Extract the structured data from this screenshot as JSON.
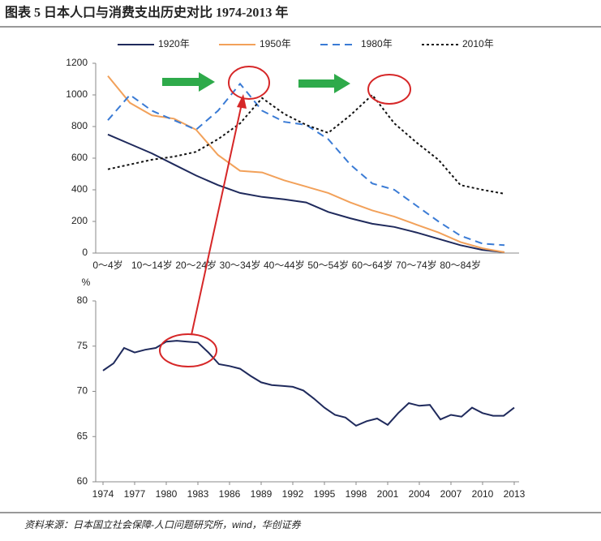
{
  "title": "图表 5   日本人口与消费支出历史对比 1974-2013 年",
  "source": "资料来源：日本国立社会保障-人口问题研究所，wind，华创证券",
  "chart_data": [
    {
      "type": "line",
      "categories": [
        "0～4岁",
        null,
        "10～14岁",
        null,
        "20～24岁",
        null,
        "30～34岁",
        null,
        "40～44岁",
        null,
        "50～54岁",
        null,
        "60～64岁",
        null,
        "70～74岁",
        null,
        "80～84岁",
        null,
        null
      ],
      "series": [
        {
          "name": "1920年",
          "color": "#1f2a5c",
          "dash": "none",
          "values": [
            750,
            690,
            630,
            560,
            490,
            430,
            380,
            355,
            340,
            320,
            260,
            220,
            185,
            165,
            130,
            90,
            50,
            20,
            5
          ]
        },
        {
          "name": "1950年",
          "color": "#f2a15a",
          "dash": "none",
          "values": [
            1120,
            950,
            870,
            850,
            780,
            620,
            520,
            510,
            460,
            420,
            380,
            320,
            270,
            230,
            180,
            130,
            70,
            30,
            5
          ]
        },
        {
          "name": "1980年",
          "color": "#3a7bd5",
          "dash": "9,6",
          "values": [
            840,
            1000,
            900,
            840,
            780,
            900,
            1070,
            900,
            830,
            810,
            720,
            560,
            440,
            400,
            300,
            200,
            110,
            60,
            50
          ]
        },
        {
          "name": "2010年",
          "color": "#111111",
          "dash": "3,3",
          "values": [
            530,
            560,
            590,
            610,
            640,
            720,
            820,
            980,
            880,
            810,
            760,
            870,
            1000,
            820,
            700,
            590,
            430,
            400,
            375
          ]
        }
      ],
      "ylim": [
        0,
        1200
      ],
      "yticks": [
        0,
        200,
        400,
        600,
        800,
        1000,
        1200
      ],
      "legend": "top"
    },
    {
      "type": "line",
      "ylabel": "%",
      "x": [
        1974,
        1975,
        1976,
        1977,
        1978,
        1979,
        1980,
        1981,
        1982,
        1983,
        1984,
        1985,
        1986,
        1987,
        1988,
        1989,
        1990,
        1991,
        1992,
        1993,
        1994,
        1995,
        1996,
        1997,
        1998,
        1999,
        2000,
        2001,
        2002,
        2003,
        2004,
        2005,
        2006,
        2007,
        2008,
        2009,
        2010,
        2011,
        2012,
        2013
      ],
      "series": [
        {
          "color": "#1f2a5c",
          "dash": "none",
          "values": [
            72.3,
            73.1,
            74.8,
            74.3,
            74.6,
            74.8,
            75.5,
            75.6,
            75.5,
            75.4,
            74.3,
            73.0,
            72.8,
            72.5,
            71.7,
            71.0,
            70.7,
            70.6,
            70.5,
            70.1,
            69.2,
            68.2,
            67.4,
            67.1,
            66.2,
            66.7,
            67.0,
            66.3,
            67.6,
            68.7,
            68.4,
            68.5,
            66.9,
            67.4,
            67.2,
            68.2,
            67.6,
            67.3,
            67.3,
            68.2
          ]
        }
      ],
      "xlim": [
        1974,
        2013
      ],
      "xticks": [
        1974,
        1977,
        1980,
        1983,
        1986,
        1989,
        1992,
        1995,
        1998,
        2001,
        2004,
        2007,
        2010,
        2013
      ],
      "ylim": [
        60,
        80
      ],
      "yticks": [
        60,
        65,
        70,
        75,
        80
      ]
    }
  ]
}
